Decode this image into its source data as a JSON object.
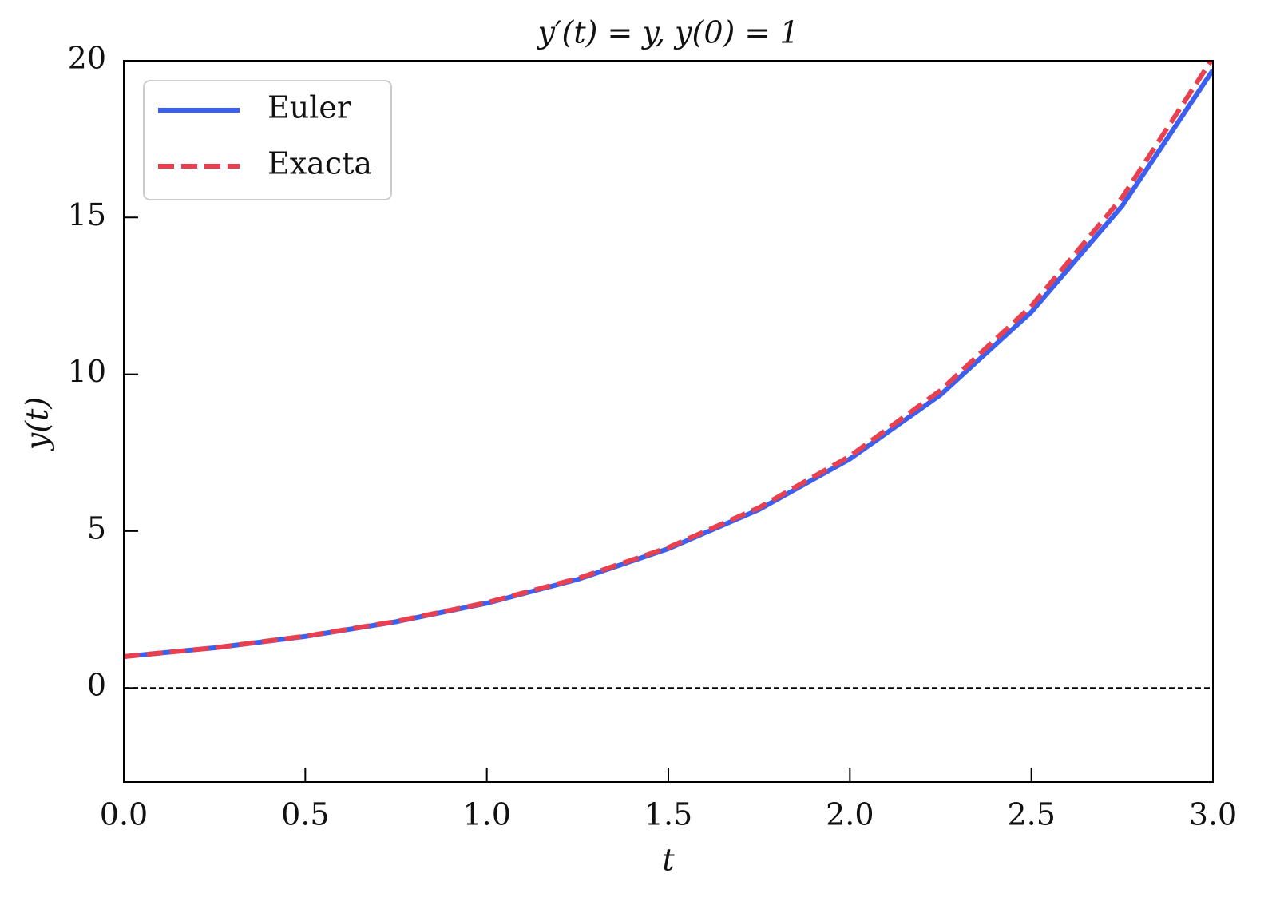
{
  "chart_data": {
    "type": "line",
    "title": "y′(t) = y,  y(0) = 1",
    "xlabel": "t",
    "ylabel": "y(t)",
    "x": [
      0,
      0.25,
      0.5,
      0.75,
      1,
      1.25,
      1.5,
      1.75,
      2,
      2.25,
      2.5,
      2.75,
      3
    ],
    "series": [
      {
        "name": "Euler",
        "color": "#3b5ff0",
        "linestyle": "solid",
        "values": [
          1,
          1.28,
          1.64,
          2.11,
          2.7,
          3.46,
          4.44,
          5.69,
          7.3,
          9.35,
          11.99,
          15.37,
          19.7
        ]
      },
      {
        "name": "Exacta",
        "color": "#e8404f",
        "linestyle": "dashed",
        "values": [
          1,
          1.28,
          1.65,
          2.12,
          2.72,
          3.49,
          4.48,
          5.75,
          7.39,
          9.49,
          12.18,
          15.64,
          20.09
        ]
      }
    ],
    "hline": 0,
    "xlim": [
      0,
      3
    ],
    "ylim": [
      -3,
      20
    ],
    "xticks": [
      {
        "value": 0,
        "label": "0.0"
      },
      {
        "value": 0.5,
        "label": "0.5"
      },
      {
        "value": 1,
        "label": "1.0"
      },
      {
        "value": 1.5,
        "label": "1.5"
      },
      {
        "value": 2,
        "label": "2.0"
      },
      {
        "value": 2.5,
        "label": "2.5"
      },
      {
        "value": 3,
        "label": "3.0"
      }
    ],
    "yticks": [
      0,
      5,
      10,
      15,
      20
    ],
    "grid": false,
    "legend": "upper left"
  }
}
